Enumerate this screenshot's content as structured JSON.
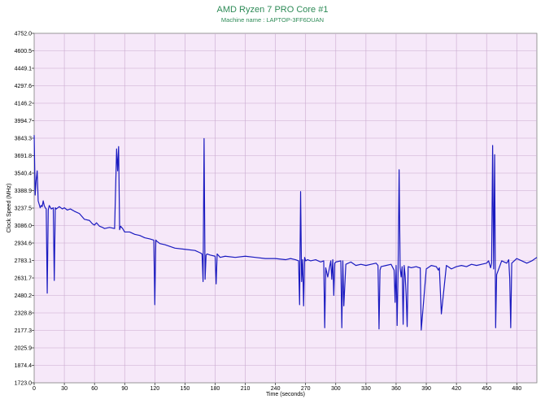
{
  "chart_data": {
    "type": "line",
    "title": "AMD Ryzen 7 PRO Core #1",
    "subtitle": "Machine name : LAPTOP-3FF6DUAN",
    "xlabel": "Time (seconds)",
    "ylabel": "Clock Speed (MHz)",
    "xlim": [
      0,
      500
    ],
    "ylim": [
      1723.0,
      4752.0
    ],
    "x_ticks": [
      0,
      30,
      60,
      90,
      120,
      150,
      180,
      210,
      240,
      270,
      300,
      330,
      360,
      390,
      420,
      450,
      480
    ],
    "y_ticks": [
      "1723.0",
      "1874.4",
      "2025.9",
      "2177.3",
      "2328.8",
      "2480.2",
      "2631.7",
      "2783.1",
      "2934.6",
      "3086.0",
      "3237.5",
      "3388.9",
      "3540.4",
      "3691.8",
      "3843.3",
      "3994.7",
      "4146.2",
      "4297.6",
      "4449.1",
      "4600.5",
      "4752.0"
    ],
    "grid": true,
    "colors": {
      "plot_background": "#f6e8f9",
      "grid": "#c9a9cf",
      "line": "#1a1ac0",
      "title": "#2e8b57"
    },
    "series": [
      {
        "x": [
          0,
          1,
          2,
          3,
          4,
          5,
          6,
          7,
          8,
          9,
          10,
          11,
          12,
          13,
          14,
          15,
          17,
          19,
          20,
          21,
          22,
          25,
          28,
          30,
          33,
          36,
          40,
          45,
          50,
          55,
          58,
          60,
          62,
          65,
          68,
          70,
          75,
          80,
          82,
          83,
          84,
          85,
          86,
          88,
          90,
          95,
          100,
          105,
          110,
          115,
          119,
          120,
          121,
          122,
          125,
          130,
          140,
          150,
          160,
          165,
          167,
          168,
          169,
          170,
          171,
          172,
          175,
          180,
          181,
          182,
          183,
          185,
          190,
          200,
          210,
          220,
          230,
          240,
          250,
          255,
          260,
          263,
          264,
          265,
          266,
          267,
          268,
          269,
          270,
          272,
          275,
          280,
          285,
          288,
          289,
          290,
          292,
          295,
          296,
          297,
          298,
          299,
          300,
          305,
          306,
          307,
          308,
          310,
          315,
          320,
          325,
          330,
          335,
          340,
          342,
          343,
          344,
          345,
          350,
          355,
          358,
          359,
          360,
          361,
          362,
          363,
          364,
          365,
          366,
          367,
          368,
          369,
          370,
          371,
          372,
          375,
          380,
          383,
          384,
          385,
          390,
          395,
          400,
          402,
          403,
          404,
          405,
          410,
          415,
          420,
          425,
          430,
          435,
          440,
          445,
          450,
          452,
          453,
          454,
          455,
          456,
          457,
          458,
          459,
          460,
          465,
          470,
          472,
          473,
          474,
          475,
          480,
          485,
          490,
          495,
          500
        ],
        "y": [
          3870,
          3350,
          3480,
          3560,
          3300,
          3270,
          3240,
          3260,
          3250,
          3300,
          3260,
          3240,
          3230,
          2500,
          3220,
          3260,
          3230,
          3240,
          2610,
          3240,
          3230,
          3250,
          3230,
          3240,
          3220,
          3230,
          3210,
          3190,
          3140,
          3130,
          3100,
          3090,
          3110,
          3080,
          3070,
          3060,
          3070,
          3060,
          3750,
          3560,
          3770,
          3050,
          3080,
          3060,
          3030,
          3030,
          3010,
          3000,
          2980,
          2970,
          2960,
          2400,
          2960,
          2950,
          2930,
          2920,
          2890,
          2880,
          2870,
          2850,
          2840,
          2600,
          3840,
          2620,
          2830,
          2840,
          2830,
          2820,
          2580,
          2840,
          2830,
          2810,
          2820,
          2810,
          2820,
          2810,
          2800,
          2800,
          2790,
          2800,
          2790,
          2780,
          2400,
          3380,
          2600,
          2790,
          2390,
          2810,
          2780,
          2790,
          2780,
          2790,
          2770,
          2780,
          2200,
          2720,
          2640,
          2780,
          2620,
          2790,
          2480,
          2760,
          2770,
          2780,
          2200,
          2780,
          2390,
          2750,
          2770,
          2740,
          2750,
          2740,
          2750,
          2760,
          2740,
          2190,
          2700,
          2730,
          2740,
          2750,
          2700,
          2420,
          2740,
          2220,
          2720,
          3570,
          2720,
          2640,
          2730,
          2230,
          2740,
          2650,
          2480,
          2210,
          2730,
          2720,
          2730,
          2720,
          2720,
          2180,
          2710,
          2740,
          2730,
          2700,
          2720,
          2520,
          2320,
          2740,
          2710,
          2730,
          2740,
          2730,
          2750,
          2740,
          2750,
          2760,
          2780,
          2750,
          2720,
          2760,
          3780,
          2710,
          3700,
          2200,
          2660,
          2780,
          2760,
          2790,
          2630,
          2200,
          2760,
          2800,
          2780,
          2760,
          2780,
          2810
        ]
      }
    ]
  }
}
